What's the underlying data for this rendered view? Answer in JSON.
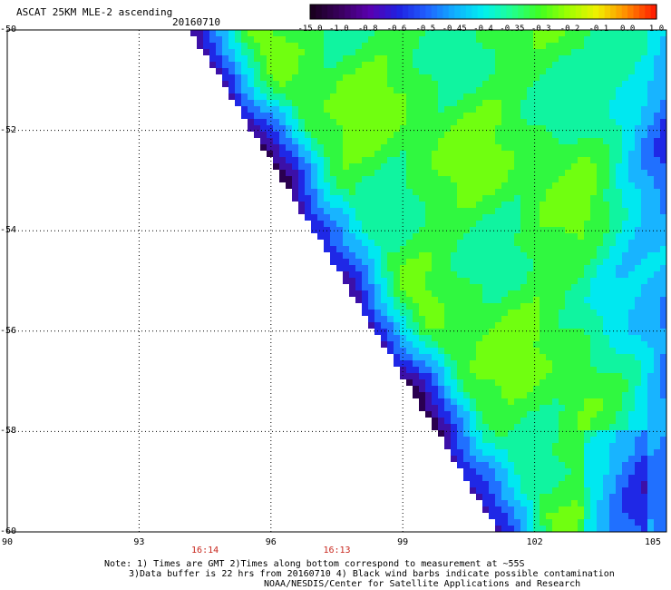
{
  "header": {
    "title": "ASCAT 25KM MLE-2 ascending",
    "date": "20160710"
  },
  "colorbar": {
    "labels": [
      "-15.0",
      "-1.0",
      "-0.8",
      "-0.6",
      "-0.5",
      "-0.45",
      "-0.4",
      "-0.35",
      "-0.3",
      "-0.2",
      "-0.1",
      "0.0",
      "1.0"
    ],
    "colors": [
      "#1a0020",
      "#3a0060",
      "#5a00b0",
      "#2020e0",
      "#2060ff",
      "#10b0ff",
      "#00f0f0",
      "#20ff90",
      "#40ff20",
      "#a0ff00",
      "#f0f000",
      "#ff9000",
      "#ff2000"
    ]
  },
  "map": {
    "lat_labels": [
      "-50",
      "-52",
      "-54",
      "-56",
      "-58",
      "-60"
    ],
    "lon_labels": [
      "90",
      "93",
      "96",
      "99",
      "102",
      "105"
    ],
    "time_labels": [
      {
        "text": "16:14",
        "lon": 94.5
      },
      {
        "text": "16:13",
        "lon": 97.5
      }
    ],
    "lat_range": [
      -60,
      -50
    ],
    "lon_range": [
      90,
      105
    ],
    "grid": true
  },
  "notes": {
    "line1": "Note: 1) Times are GMT 2)Times along bottom correspond to measurement at ~55S",
    "line2": "3)Data buffer is 22 hrs from 20160710 4) Black wind barbs indicate possible contamination",
    "line3": "NOAA/NESDIS/Center for Satellite Applications and Research"
  }
}
